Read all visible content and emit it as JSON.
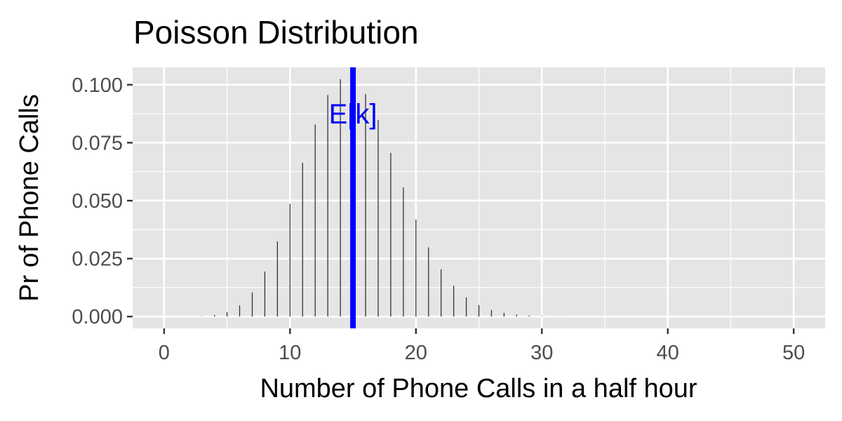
{
  "chart_data": {
    "type": "bar",
    "title": "Poisson Distribution",
    "xlabel": "Number of Phone Calls in a half hour",
    "ylabel": "Pr of Phone Calls",
    "xlim": [
      -2.5,
      52.5
    ],
    "ylim": [
      -0.0051,
      0.1075
    ],
    "x_ticks": [
      0,
      10,
      20,
      30,
      40,
      50
    ],
    "y_ticks": [
      0.0,
      0.025,
      0.05,
      0.075,
      0.1
    ],
    "y_tick_labels": [
      "0.000",
      "0.025",
      "0.050",
      "0.075",
      "0.100"
    ],
    "grid": true,
    "background": "#e5e5e5",
    "grid_color": "#ffffff",
    "series": [
      {
        "x": [
          0,
          1,
          2,
          3,
          4,
          5,
          6,
          7,
          8,
          9,
          10,
          11,
          12,
          13,
          14,
          15,
          16,
          17,
          18,
          19,
          20,
          21,
          22,
          23,
          24,
          25,
          26,
          27,
          28,
          29,
          30,
          31,
          32,
          33,
          34,
          35,
          36,
          37,
          38,
          39,
          40,
          41,
          42,
          43,
          44,
          45,
          46,
          47,
          48,
          49,
          50
        ],
        "values": [
          3e-07,
          4.6e-06,
          3.44e-05,
          0.000172,
          0.000645,
          0.001936,
          0.00484,
          0.01037,
          0.01944,
          0.0324,
          0.0486,
          0.06628,
          0.08285,
          0.0956,
          0.1024,
          0.1024,
          0.096,
          0.08471,
          0.0706,
          0.05573,
          0.0418,
          0.02986,
          0.02036,
          0.01328,
          0.0083,
          0.00498,
          0.002873,
          0.001596,
          0.000855,
          0.000442,
          0.000221,
          0.000107,
          5e-05,
          2.3e-05,
          1e-05,
          4.4e-06,
          1.8e-06,
          7e-07,
          3e-07,
          1e-07,
          0,
          0,
          0,
          0,
          0,
          0,
          0,
          0,
          0,
          0,
          0
        ],
        "color": "#333333"
      }
    ],
    "vline": {
      "x": 15,
      "color": "#0000ff"
    },
    "annotation": {
      "text": "E[k]",
      "x": 15,
      "y": 0.0875,
      "color": "#0000ff"
    }
  }
}
